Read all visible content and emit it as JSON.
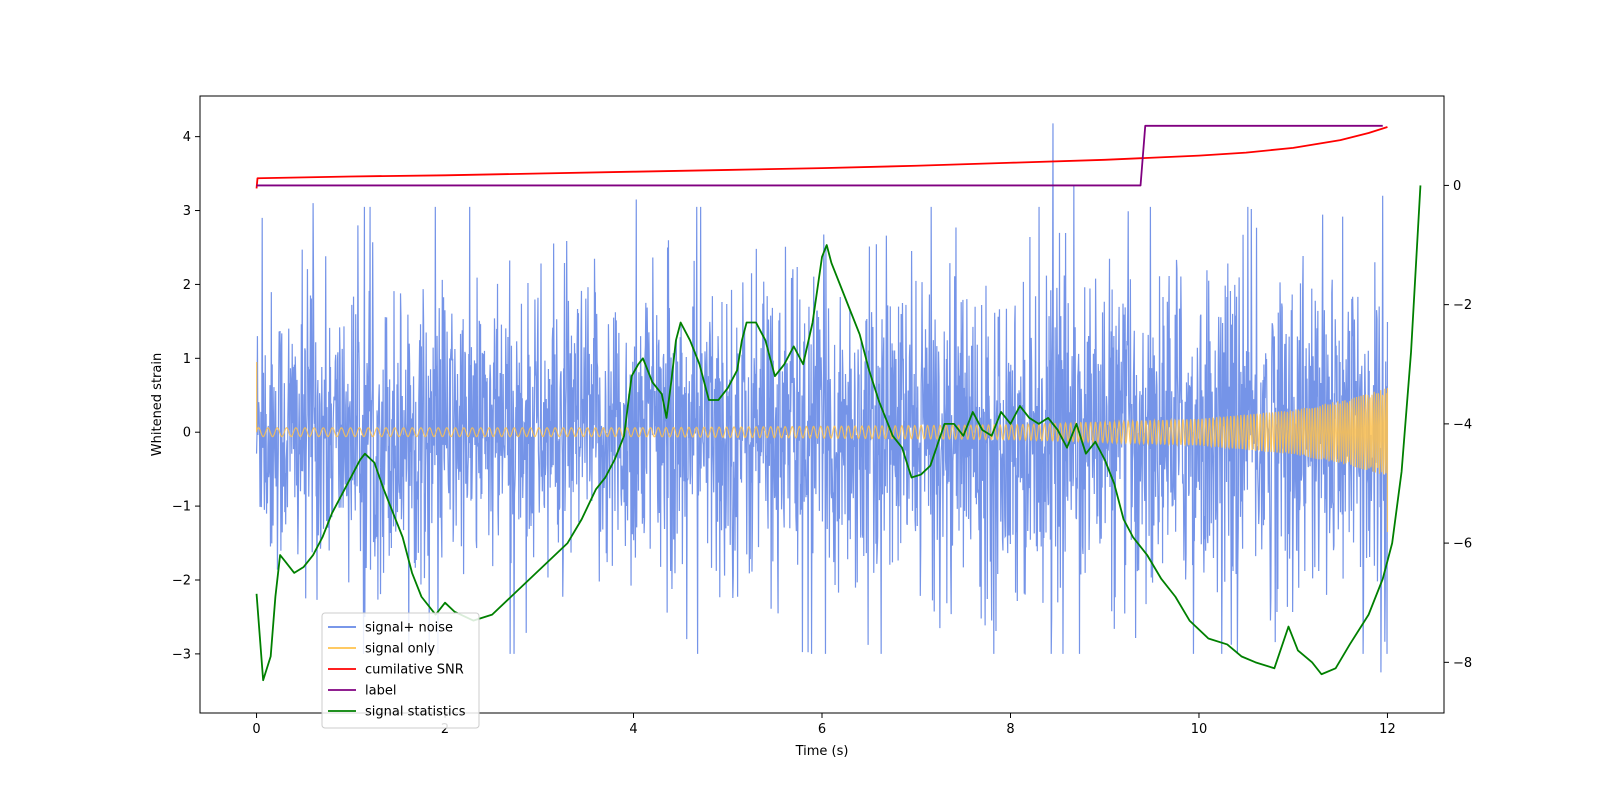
{
  "chart_data": {
    "type": "line",
    "title": "",
    "xlabel": "Time (s)",
    "ylabel": "Whitened strain",
    "y2label": "",
    "xlim": [
      -0.6,
      12.6
    ],
    "ylim": [
      -3.8,
      4.55
    ],
    "y2lim": [
      -8.85,
      1.5
    ],
    "x_ticks": [
      0,
      2,
      4,
      6,
      8,
      10,
      12
    ],
    "x_tick_labels": [
      "0",
      "2",
      "4",
      "6",
      "8",
      "10",
      "12"
    ],
    "y_ticks": [
      -3,
      -2,
      -1,
      0,
      1,
      2,
      3,
      4
    ],
    "y_tick_labels": [
      "−3",
      "−2",
      "−1",
      "0",
      "1",
      "2",
      "3",
      "4"
    ],
    "y2_ticks": [
      -8,
      -6,
      -4,
      -2,
      0
    ],
    "y2_tick_labels": [
      "−8",
      "−6",
      "−4",
      "−2",
      "0"
    ],
    "grid": false,
    "legend_position": "lower-left",
    "series": [
      {
        "name": "signal+ noise",
        "color": "#6688e6",
        "axis": "left",
        "kind": "noise",
        "x_range": [
          0,
          12
        ],
        "envelope": [
          [
            0,
            1.1
          ],
          [
            2,
            1.1
          ],
          [
            4,
            1.15
          ],
          [
            6,
            1.2
          ],
          [
            8,
            1.2
          ],
          [
            10,
            1.25
          ],
          [
            12,
            1.4
          ]
        ],
        "spikes": [
          [
            8.45,
            4.18
          ],
          [
            8.67,
            3.35
          ],
          [
            11.95,
            3.2
          ],
          [
            11.93,
            -3.25
          ],
          [
            0.06,
            2.9
          ],
          [
            0.6,
            3.1
          ],
          [
            4.03,
            3.15
          ],
          [
            1.15,
            -2.5
          ]
        ]
      },
      {
        "name": "signal only",
        "color": "#ffc24d",
        "axis": "left",
        "kind": "chirp",
        "x_range": [
          0,
          12
        ],
        "amplitude_points": [
          [
            0,
            0.06
          ],
          [
            4,
            0.06
          ],
          [
            8,
            0.1
          ],
          [
            10,
            0.18
          ],
          [
            11,
            0.3
          ],
          [
            11.6,
            0.45
          ],
          [
            12,
            0.6
          ]
        ]
      },
      {
        "name": "cumilative SNR",
        "color": "#ff0000",
        "axis": "right",
        "points": [
          [
            0,
            -0.05
          ],
          [
            0.01,
            0.12
          ],
          [
            1,
            0.15
          ],
          [
            2,
            0.17
          ],
          [
            3,
            0.2
          ],
          [
            4,
            0.23
          ],
          [
            5,
            0.26
          ],
          [
            6,
            0.29
          ],
          [
            7,
            0.33
          ],
          [
            8,
            0.38
          ],
          [
            9,
            0.43
          ],
          [
            10,
            0.5
          ],
          [
            10.5,
            0.55
          ],
          [
            11,
            0.63
          ],
          [
            11.5,
            0.76
          ],
          [
            11.8,
            0.88
          ],
          [
            12,
            0.98
          ]
        ]
      },
      {
        "name": "label",
        "color": "#800080",
        "axis": "right",
        "points": [
          [
            0,
            0
          ],
          [
            9.38,
            0
          ],
          [
            9.43,
            1.0
          ],
          [
            11.95,
            1.0
          ]
        ]
      },
      {
        "name": "signal statistics",
        "color": "#008000",
        "axis": "right",
        "points": [
          [
            0,
            -6.85
          ],
          [
            0.07,
            -8.3
          ],
          [
            0.15,
            -7.9
          ],
          [
            0.2,
            -6.9
          ],
          [
            0.25,
            -6.2
          ],
          [
            0.3,
            -6.3
          ],
          [
            0.4,
            -6.5
          ],
          [
            0.5,
            -6.4
          ],
          [
            0.6,
            -6.2
          ],
          [
            0.7,
            -5.9
          ],
          [
            0.8,
            -5.5
          ],
          [
            0.9,
            -5.2
          ],
          [
            1.0,
            -4.9
          ],
          [
            1.1,
            -4.6
          ],
          [
            1.15,
            -4.5
          ],
          [
            1.25,
            -4.65
          ],
          [
            1.35,
            -5.1
          ],
          [
            1.45,
            -5.5
          ],
          [
            1.55,
            -5.9
          ],
          [
            1.65,
            -6.5
          ],
          [
            1.75,
            -6.9
          ],
          [
            1.9,
            -7.2
          ],
          [
            2.0,
            -7.0
          ],
          [
            2.1,
            -7.15
          ],
          [
            2.3,
            -7.3
          ],
          [
            2.5,
            -7.2
          ],
          [
            2.7,
            -6.9
          ],
          [
            2.9,
            -6.6
          ],
          [
            3.1,
            -6.3
          ],
          [
            3.3,
            -6.0
          ],
          [
            3.45,
            -5.6
          ],
          [
            3.6,
            -5.1
          ],
          [
            3.7,
            -4.9
          ],
          [
            3.8,
            -4.6
          ],
          [
            3.9,
            -4.2
          ],
          [
            3.98,
            -3.2
          ],
          [
            4.05,
            -3.0
          ],
          [
            4.1,
            -2.9
          ],
          [
            4.2,
            -3.3
          ],
          [
            4.3,
            -3.5
          ],
          [
            4.35,
            -3.9
          ],
          [
            4.4,
            -3.3
          ],
          [
            4.45,
            -2.6
          ],
          [
            4.5,
            -2.3
          ],
          [
            4.6,
            -2.6
          ],
          [
            4.7,
            -3.0
          ],
          [
            4.8,
            -3.6
          ],
          [
            4.9,
            -3.6
          ],
          [
            5.0,
            -3.4
          ],
          [
            5.1,
            -3.1
          ],
          [
            5.15,
            -2.6
          ],
          [
            5.2,
            -2.3
          ],
          [
            5.3,
            -2.3
          ],
          [
            5.4,
            -2.6
          ],
          [
            5.5,
            -3.2
          ],
          [
            5.6,
            -3.0
          ],
          [
            5.7,
            -2.7
          ],
          [
            5.8,
            -3.0
          ],
          [
            5.9,
            -2.3
          ],
          [
            6.0,
            -1.2
          ],
          [
            6.05,
            -1.0
          ],
          [
            6.1,
            -1.3
          ],
          [
            6.2,
            -1.7
          ],
          [
            6.3,
            -2.1
          ],
          [
            6.4,
            -2.5
          ],
          [
            6.5,
            -3.1
          ],
          [
            6.6,
            -3.6
          ],
          [
            6.75,
            -4.2
          ],
          [
            6.85,
            -4.4
          ],
          [
            6.95,
            -4.9
          ],
          [
            7.05,
            -4.85
          ],
          [
            7.15,
            -4.7
          ],
          [
            7.3,
            -4.0
          ],
          [
            7.4,
            -4.0
          ],
          [
            7.5,
            -4.2
          ],
          [
            7.6,
            -3.8
          ],
          [
            7.7,
            -4.1
          ],
          [
            7.8,
            -4.2
          ],
          [
            7.9,
            -3.8
          ],
          [
            8.0,
            -4.0
          ],
          [
            8.1,
            -3.7
          ],
          [
            8.2,
            -3.9
          ],
          [
            8.3,
            -4.0
          ],
          [
            8.4,
            -3.9
          ],
          [
            8.5,
            -4.1
          ],
          [
            8.6,
            -4.4
          ],
          [
            8.7,
            -4.0
          ],
          [
            8.8,
            -4.5
          ],
          [
            8.9,
            -4.3
          ],
          [
            9.0,
            -4.6
          ],
          [
            9.1,
            -5.0
          ],
          [
            9.2,
            -5.6
          ],
          [
            9.3,
            -5.9
          ],
          [
            9.45,
            -6.2
          ],
          [
            9.6,
            -6.6
          ],
          [
            9.75,
            -6.9
          ],
          [
            9.9,
            -7.3
          ],
          [
            10.1,
            -7.6
          ],
          [
            10.3,
            -7.7
          ],
          [
            10.45,
            -7.9
          ],
          [
            10.6,
            -8.0
          ],
          [
            10.8,
            -8.1
          ],
          [
            10.95,
            -7.4
          ],
          [
            11.05,
            -7.8
          ],
          [
            11.2,
            -8.0
          ],
          [
            11.3,
            -8.2
          ],
          [
            11.45,
            -8.1
          ],
          [
            11.6,
            -7.7
          ],
          [
            11.8,
            -7.2
          ],
          [
            11.95,
            -6.6
          ],
          [
            12.05,
            -6.0
          ],
          [
            12.15,
            -4.8
          ],
          [
            12.25,
            -2.8
          ],
          [
            12.35,
            0.0
          ]
        ]
      }
    ]
  }
}
